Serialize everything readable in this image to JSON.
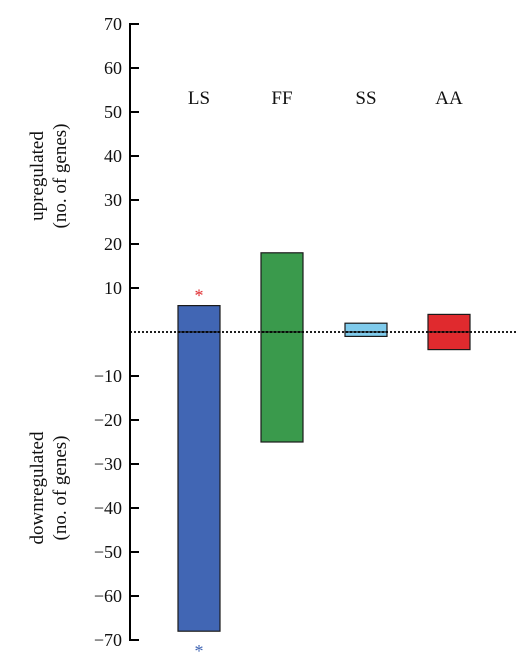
{
  "chart_data": {
    "type": "bar",
    "categories": [
      "LS",
      "FF",
      "SS",
      "AA"
    ],
    "series": [
      {
        "values": [
          6,
          18,
          2,
          4
        ]
      },
      {
        "values": [
          -68,
          -25,
          -1,
          -4
        ]
      }
    ],
    "colors": [
      "#4166b4",
      "#3a9a4c",
      "#7fcbec",
      "#e02a2e"
    ],
    "yticks": [
      70,
      60,
      50,
      40,
      30,
      20,
      10,
      -10,
      -20,
      -30,
      -40,
      -50,
      -60,
      -70
    ],
    "ylim": [
      -70,
      70
    ],
    "ylabel_up": [
      "upregulated",
      "(no. of genes)"
    ],
    "ylabel_down": [
      "downregulated",
      "(no. of genes)"
    ],
    "annotations": [
      {
        "category": "LS",
        "text": "*",
        "color": "#e02a2e",
        "position": "above-up"
      },
      {
        "category": "LS",
        "text": "*",
        "color": "#4166b4",
        "position": "below-down"
      }
    ],
    "zero_line": "dotted",
    "grid": false,
    "legend": "none"
  }
}
